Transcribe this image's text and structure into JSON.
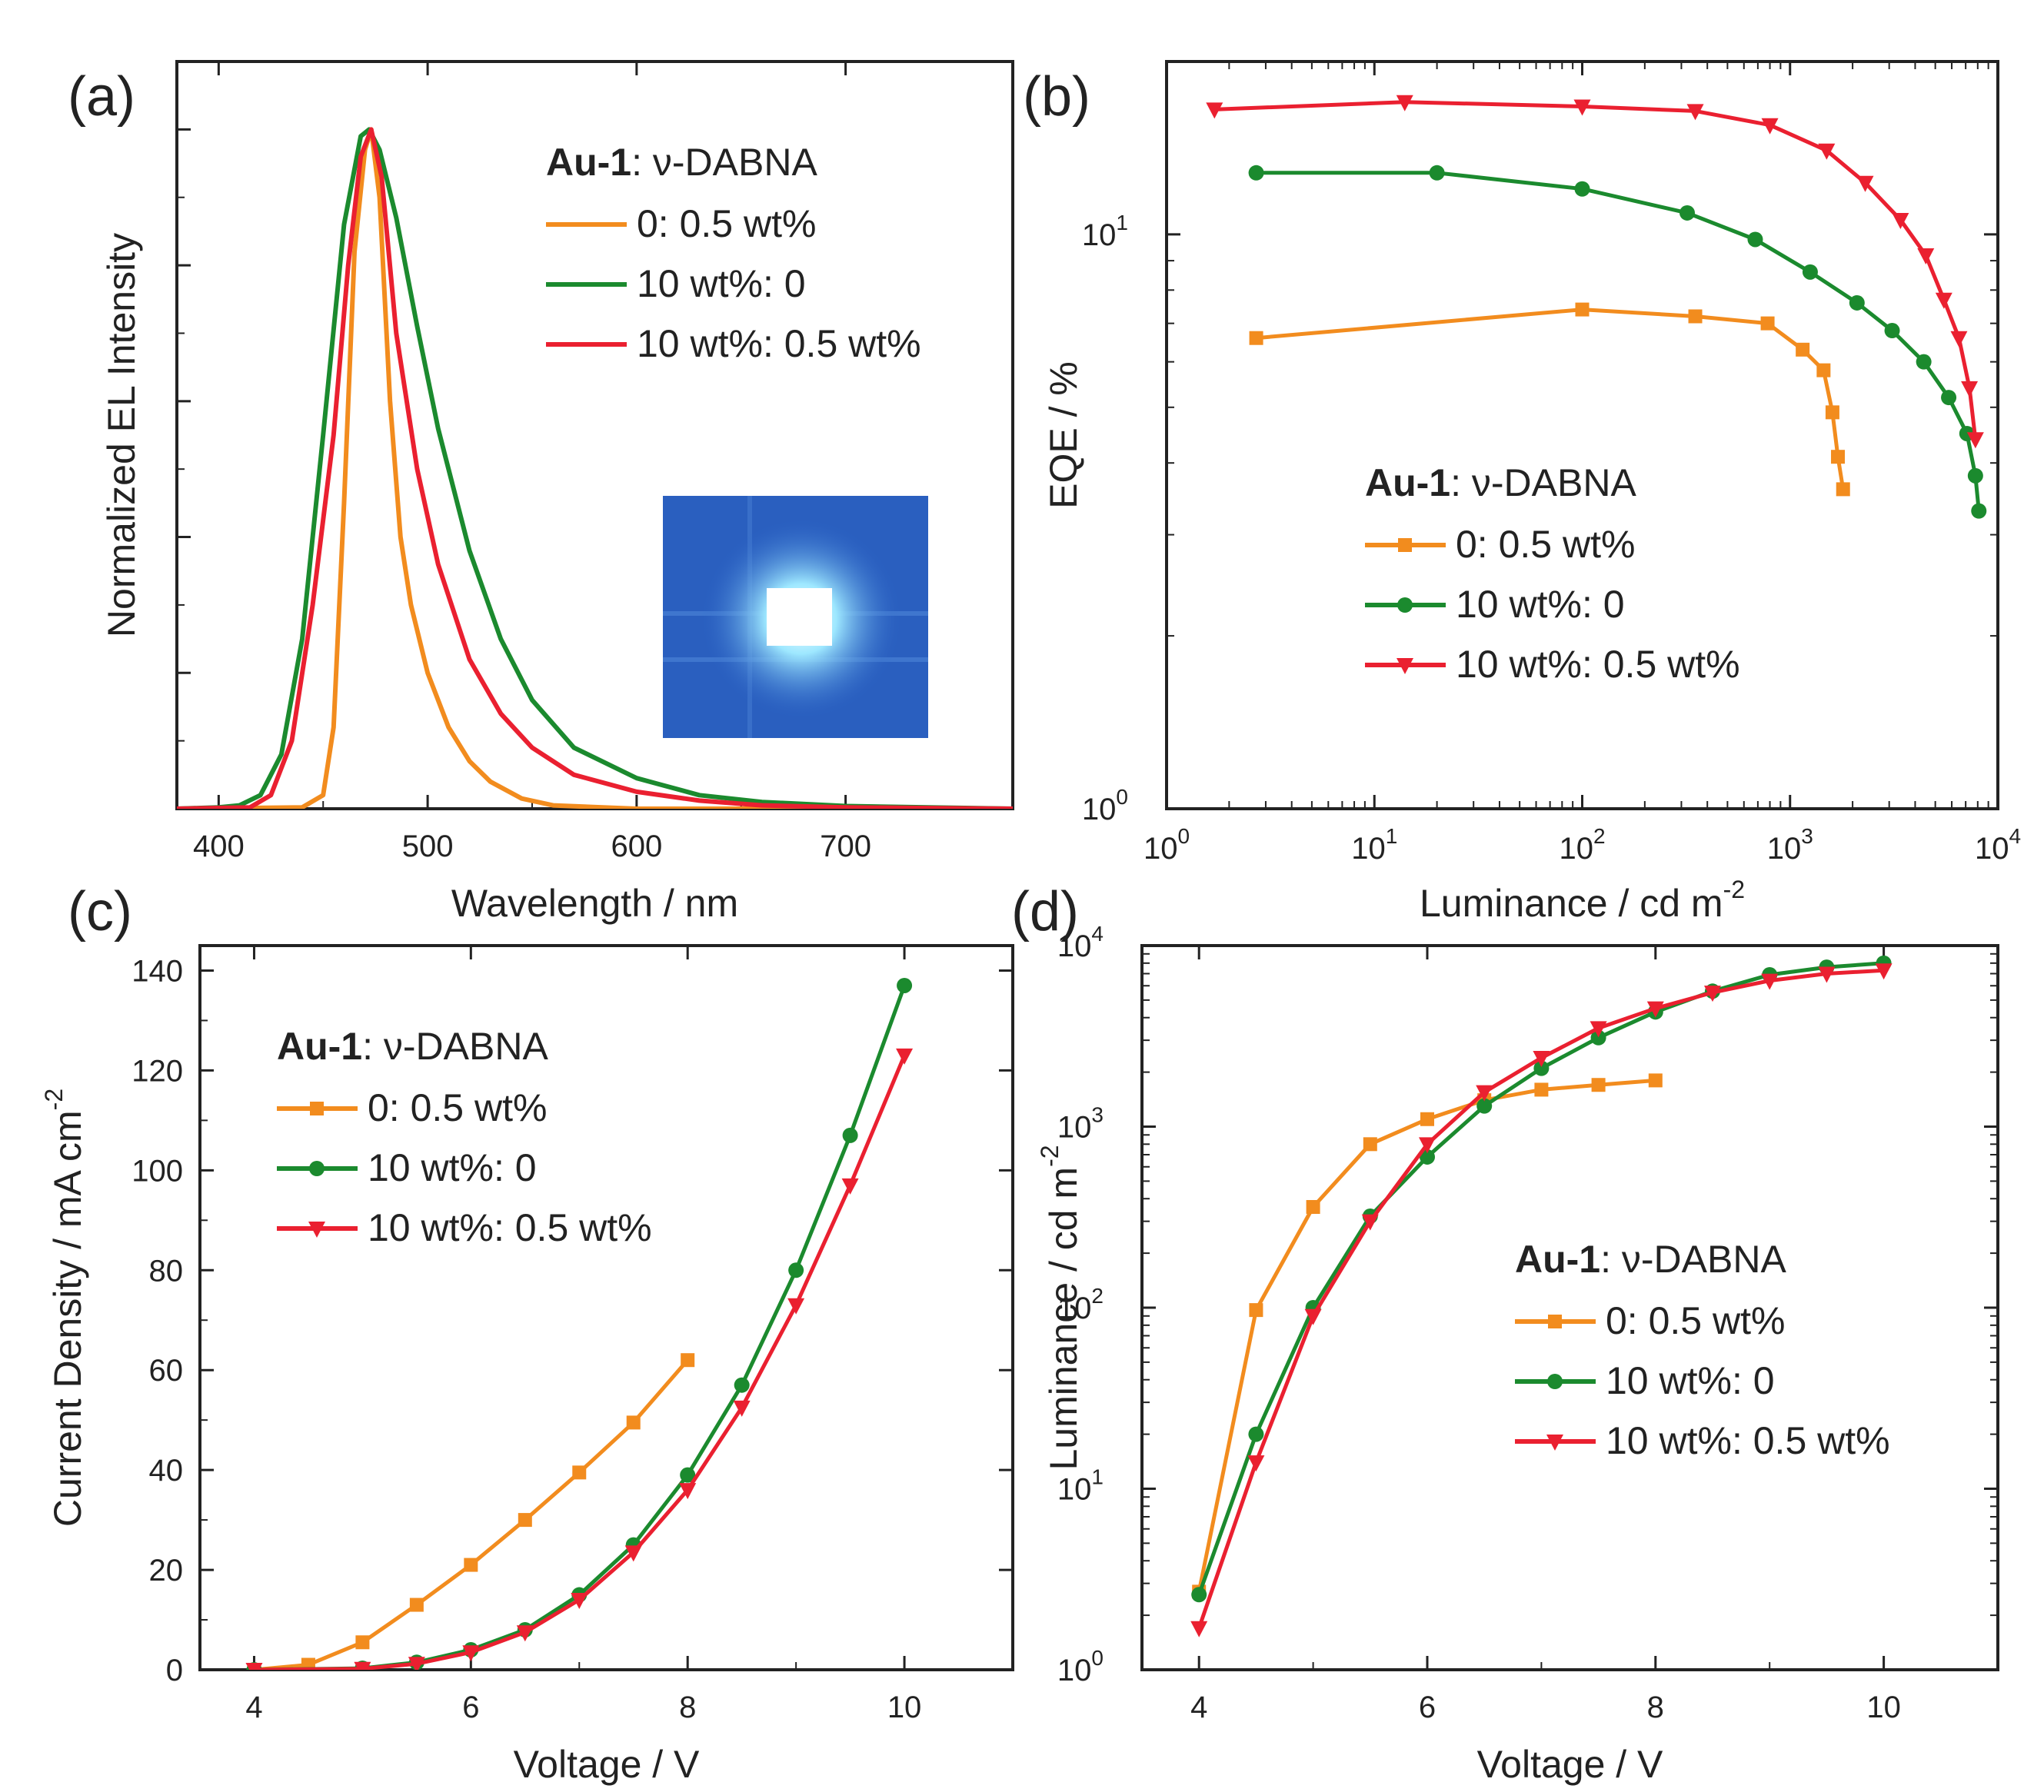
{
  "figure": {
    "legend_title_bold": "Au-1",
    "legend_title_rest": ": ν-DABNA",
    "series_colors": [
      "#f28c1e",
      "#1b8a2e",
      "#ea2030"
    ]
  },
  "chart_data": [
    {
      "panel": "(a)",
      "type": "line",
      "title": "",
      "xlabel": "Wavelength / nm",
      "ylabel": "Normalized EL Intensity",
      "xlim": [
        380,
        780
      ],
      "ylim": [
        0,
        1.1
      ],
      "xticks": [
        400,
        500,
        600,
        700
      ],
      "legend_position": "top-right",
      "inset": "photo of glowing blue device",
      "series": [
        {
          "name": "0: 0.5 wt%",
          "color": "#f28c1e",
          "x": [
            380,
            440,
            450,
            455,
            460,
            465,
            470,
            473,
            477,
            482,
            487,
            492,
            500,
            510,
            520,
            530,
            545,
            560,
            600,
            780
          ],
          "y": [
            0,
            0.002,
            0.02,
            0.12,
            0.45,
            0.82,
            0.97,
            1.0,
            0.9,
            0.6,
            0.4,
            0.3,
            0.2,
            0.12,
            0.07,
            0.04,
            0.015,
            0.005,
            0,
            0
          ]
        },
        {
          "name": "10 wt%: 0",
          "color": "#1b8a2e",
          "x": [
            380,
            400,
            410,
            420,
            430,
            440,
            450,
            460,
            468,
            472,
            477,
            485,
            495,
            505,
            520,
            535,
            550,
            570,
            600,
            630,
            660,
            700,
            780
          ],
          "y": [
            0,
            0.002,
            0.005,
            0.02,
            0.08,
            0.25,
            0.55,
            0.86,
            0.99,
            1.0,
            0.97,
            0.87,
            0.71,
            0.56,
            0.38,
            0.25,
            0.16,
            0.09,
            0.045,
            0.02,
            0.01,
            0.004,
            0
          ]
        },
        {
          "name": "10 wt%: 0.5 wt%",
          "color": "#ea2030",
          "x": [
            380,
            415,
            425,
            435,
            445,
            455,
            462,
            468,
            473,
            478,
            485,
            495,
            505,
            520,
            535,
            550,
            570,
            600,
            630,
            660,
            700,
            780
          ],
          "y": [
            0,
            0.002,
            0.02,
            0.1,
            0.3,
            0.55,
            0.8,
            0.96,
            1.0,
            0.93,
            0.7,
            0.5,
            0.36,
            0.22,
            0.14,
            0.09,
            0.05,
            0.025,
            0.012,
            0.005,
            0.002,
            0
          ]
        }
      ]
    },
    {
      "panel": "(b)",
      "type": "line",
      "title": "",
      "xlabel": "Luminance / cd m",
      "xlabel_sup": "-2",
      "ylabel": "EQE / %",
      "xscale": "log",
      "yscale": "log",
      "xlim": [
        1,
        10000
      ],
      "ylim": [
        1,
        20
      ],
      "xticks": [
        "10",
        "10",
        "10",
        "10",
        "10"
      ],
      "xtick_exponents": [
        "0",
        "1",
        "2",
        "3",
        "4"
      ],
      "yticks": [
        "10",
        "10"
      ],
      "ytick_exponents": [
        "0",
        "1"
      ],
      "legend_position": "center-right",
      "series": [
        {
          "name": "0: 0.5 wt%",
          "color": "#f28c1e",
          "marker": "square",
          "x": [
            2.7,
            100,
            350,
            780,
            1150,
            1450,
            1600,
            1700,
            1800
          ],
          "y": [
            6.6,
            7.4,
            7.2,
            7.0,
            6.3,
            5.8,
            4.9,
            4.1,
            3.6
          ]
        },
        {
          "name": "10 wt%: 0",
          "color": "#1b8a2e",
          "marker": "circle",
          "x": [
            2.7,
            20,
            100,
            320,
            680,
            1250,
            2100,
            3100,
            4400,
            5800,
            7100,
            7800,
            8100
          ],
          "y": [
            12.8,
            12.8,
            12.0,
            10.9,
            9.8,
            8.6,
            7.6,
            6.8,
            6.0,
            5.2,
            4.5,
            3.8,
            3.3
          ]
        },
        {
          "name": "10 wt%: 0.5 wt%",
          "color": "#ea2030",
          "marker": "triangle-down",
          "x": [
            1.7,
            14,
            100,
            350,
            800,
            1500,
            2300,
            3400,
            4500,
            5500,
            6500,
            7300,
            7800
          ],
          "y": [
            16.5,
            17.0,
            16.7,
            16.4,
            15.5,
            14.0,
            12.3,
            10.6,
            9.2,
            7.7,
            6.6,
            5.4,
            4.4
          ]
        }
      ]
    },
    {
      "panel": "(c)",
      "type": "line",
      "title": "",
      "xlabel": "Voltage / V",
      "ylabel": "Current Density / mA cm",
      "ylabel_sup": "-2",
      "xlim": [
        3.5,
        11
      ],
      "ylim": [
        0,
        145
      ],
      "xticks": [
        4,
        6,
        8,
        10
      ],
      "yticks": [
        0,
        20,
        40,
        60,
        80,
        100,
        120,
        140
      ],
      "legend_position": "top-left",
      "series": [
        {
          "name": "0: 0.5 wt%",
          "color": "#f28c1e",
          "marker": "square",
          "x": [
            4,
            4.5,
            5,
            5.5,
            6,
            6.5,
            7,
            7.5,
            8
          ],
          "y": [
            0,
            1,
            5.5,
            13,
            21,
            30,
            39.5,
            49.5,
            62
          ]
        },
        {
          "name": "10 wt%: 0",
          "color": "#1b8a2e",
          "marker": "circle",
          "x": [
            4,
            5,
            5.5,
            6,
            6.5,
            7,
            7.5,
            8,
            8.5,
            9,
            9.5,
            10
          ],
          "y": [
            0,
            0.3,
            1.5,
            4,
            8,
            15,
            25,
            39,
            57,
            80,
            107,
            137
          ]
        },
        {
          "name": "10 wt%: 0.5 wt%",
          "color": "#ea2030",
          "marker": "triangle-down",
          "x": [
            4,
            5,
            5.5,
            6,
            6.5,
            7,
            7.5,
            8,
            8.5,
            9,
            9.5,
            10
          ],
          "y": [
            0,
            0.2,
            1.2,
            3.5,
            7.5,
            14,
            23.5,
            36,
            52.5,
            73,
            97,
            123
          ]
        }
      ]
    },
    {
      "panel": "(d)",
      "type": "line",
      "title": "",
      "xlabel": "Voltage / V",
      "ylabel": "Luminance / cd m",
      "ylabel_sup": "-2",
      "yscale": "log",
      "xlim": [
        3.5,
        11
      ],
      "ylim": [
        1,
        10000
      ],
      "xticks": [
        4,
        6,
        8,
        10
      ],
      "yticks": [
        "10",
        "10",
        "10",
        "10",
        "10"
      ],
      "ytick_exponents": [
        "0",
        "1",
        "2",
        "3",
        "4"
      ],
      "legend_position": "center-right",
      "series": [
        {
          "name": "0: 0.5 wt%",
          "color": "#f28c1e",
          "marker": "square",
          "x": [
            4,
            4.5,
            5,
            5.5,
            6,
            6.5,
            7,
            7.5,
            8
          ],
          "y": [
            2.7,
            97,
            360,
            800,
            1100,
            1400,
            1600,
            1700,
            1800
          ]
        },
        {
          "name": "10 wt%: 0",
          "color": "#1b8a2e",
          "marker": "circle",
          "x": [
            4,
            4.5,
            5,
            5.5,
            6,
            6.5,
            7,
            7.5,
            8,
            8.5,
            9,
            9.5,
            10
          ],
          "y": [
            2.6,
            20,
            100,
            320,
            680,
            1300,
            2100,
            3100,
            4300,
            5600,
            6900,
            7600,
            8000
          ]
        },
        {
          "name": "10 wt%: 0.5 wt%",
          "color": "#ea2030",
          "marker": "triangle-down",
          "x": [
            4,
            4.5,
            5,
            5.5,
            6,
            6.5,
            7,
            7.5,
            8,
            8.5,
            9,
            9.5,
            10
          ],
          "y": [
            1.7,
            14,
            90,
            300,
            800,
            1550,
            2400,
            3500,
            4500,
            5500,
            6400,
            7000,
            7300
          ]
        }
      ]
    }
  ]
}
